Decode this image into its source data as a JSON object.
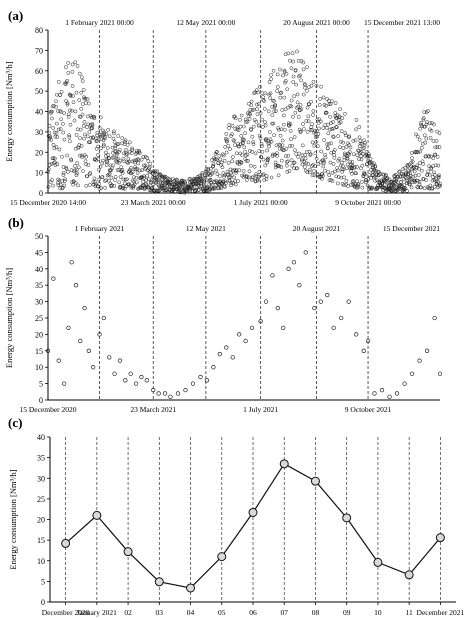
{
  "panels": [
    {
      "label": "(a)"
    },
    {
      "label": "(b)"
    },
    {
      "label": "(c)"
    }
  ],
  "chart_data": [
    {
      "type": "scatter",
      "panel": "(a)",
      "title": "",
      "ylabel": "Energy consumption [Nm³/h]",
      "ylim": [
        0,
        80
      ],
      "yticks": [
        0,
        10,
        20,
        30,
        40,
        50,
        60,
        70,
        80
      ],
      "xlim": [
        "2020-12-15",
        "2021-12-15"
      ],
      "top_labels": [
        "1 February 2021 00:00",
        "12 May 2021 00:00",
        "20 August 2021 00:00",
        "15 December 2021 13:00"
      ],
      "bottom_labels": [
        "15 December 2020 14:00",
        "23 March 2021 00:00",
        "1 July 2021 00:00",
        "9 October 2021 00:00"
      ],
      "series": [
        {
          "name": "",
          "x_unit": "day (hourly data)",
          "x": [],
          "y": []
        }
      ],
      "envelope": {
        "description": "hourly readings; approximate daily min/max envelope",
        "x": [
          "2020-12-15",
          "2020-12-25",
          "2021-01-05",
          "2021-01-15",
          "2021-01-25",
          "2021-02-01",
          "2021-02-15",
          "2021-03-01",
          "2021-03-15",
          "2021-03-23",
          "2021-04-05",
          "2021-04-20",
          "2021-05-01",
          "2021-05-12",
          "2021-05-25",
          "2021-06-05",
          "2021-06-20",
          "2021-07-01",
          "2021-07-15",
          "2021-07-25",
          "2021-08-05",
          "2021-08-20",
          "2021-09-01",
          "2021-09-15",
          "2021-10-01",
          "2021-10-09",
          "2021-10-20",
          "2021-11-01",
          "2021-11-15",
          "2021-12-01",
          "2021-12-15"
        ],
        "low": [
          3,
          2,
          3,
          4,
          3,
          2,
          2,
          2,
          2,
          1,
          1,
          0,
          1,
          1,
          2,
          4,
          5,
          6,
          8,
          10,
          12,
          8,
          6,
          4,
          2,
          2,
          1,
          1,
          1,
          2,
          2
        ],
        "high": [
          40,
          55,
          68,
          60,
          40,
          38,
          30,
          25,
          20,
          12,
          8,
          6,
          8,
          12,
          25,
          38,
          45,
          55,
          62,
          70,
          72,
          55,
          50,
          40,
          35,
          20,
          10,
          8,
          15,
          45,
          30
        ]
      }
    },
    {
      "type": "scatter",
      "panel": "(b)",
      "title": "",
      "ylabel": "Energy consumption [Nm³/h]",
      "ylim": [
        0,
        50
      ],
      "yticks": [
        0,
        5,
        10,
        15,
        20,
        25,
        30,
        35,
        40,
        45,
        50
      ],
      "xlim": [
        "2020-12-15",
        "2021-12-15"
      ],
      "top_labels": [
        "1 February 2021",
        "12 May 2021",
        "20 August 2021",
        "15 December 2021"
      ],
      "bottom_labels": [
        "15 December 2020",
        "23 March 2021",
        "1 July 2021",
        "9 October 2021"
      ],
      "series": [
        {
          "name": "",
          "x_unit": "day (daily mean)",
          "x": [
            "2020-12-15",
            "2020-12-20",
            "2020-12-25",
            "2020-12-30",
            "2021-01-03",
            "2021-01-06",
            "2021-01-10",
            "2021-01-14",
            "2021-01-18",
            "2021-01-22",
            "2021-01-26",
            "2021-02-01",
            "2021-02-05",
            "2021-02-10",
            "2021-02-15",
            "2021-02-20",
            "2021-02-25",
            "2021-03-02",
            "2021-03-07",
            "2021-03-12",
            "2021-03-17",
            "2021-03-23",
            "2021-03-28",
            "2021-04-03",
            "2021-04-08",
            "2021-04-15",
            "2021-04-22",
            "2021-04-29",
            "2021-05-06",
            "2021-05-12",
            "2021-05-18",
            "2021-05-24",
            "2021-05-30",
            "2021-06-05",
            "2021-06-11",
            "2021-06-17",
            "2021-06-23",
            "2021-07-01",
            "2021-07-06",
            "2021-07-12",
            "2021-07-17",
            "2021-07-22",
            "2021-07-27",
            "2021-08-01",
            "2021-08-06",
            "2021-08-12",
            "2021-08-20",
            "2021-08-26",
            "2021-09-01",
            "2021-09-07",
            "2021-09-14",
            "2021-09-21",
            "2021-09-28",
            "2021-10-05",
            "2021-10-09",
            "2021-10-15",
            "2021-10-22",
            "2021-10-29",
            "2021-11-05",
            "2021-11-12",
            "2021-11-19",
            "2021-11-26",
            "2021-12-03",
            "2021-12-10",
            "2021-12-15"
          ],
          "y": [
            15,
            37,
            12,
            5,
            22,
            42,
            35,
            18,
            28,
            15,
            10,
            20,
            25,
            13,
            8,
            12,
            6,
            8,
            5,
            7,
            6,
            3,
            2,
            2,
            1,
            2,
            3,
            5,
            7,
            6,
            10,
            14,
            16,
            13,
            20,
            18,
            22,
            24,
            30,
            38,
            28,
            22,
            40,
            42,
            35,
            45,
            28,
            30,
            32,
            22,
            25,
            30,
            20,
            15,
            18,
            2,
            3,
            1,
            2,
            5,
            8,
            12,
            15,
            25,
            8
          ]
        }
      ]
    },
    {
      "type": "line",
      "panel": "(c)",
      "title": "",
      "ylabel": "Energy consumption [Nm³/h]",
      "ylim": [
        0,
        40
      ],
      "yticks": [
        0,
        5,
        10,
        15,
        20,
        25,
        30,
        35,
        40
      ],
      "categories": [
        "December 2020",
        "January 2021",
        "02",
        "03",
        "04",
        "05",
        "06",
        "07",
        "08",
        "09",
        "10",
        "11",
        "December 2021"
      ],
      "series": [
        {
          "name": "",
          "values": [
            14.2,
            21.0,
            12.2,
            4.9,
            3.4,
            11.0,
            21.7,
            33.5,
            29.3,
            20.4,
            9.6,
            6.6,
            15.6
          ]
        }
      ]
    }
  ]
}
